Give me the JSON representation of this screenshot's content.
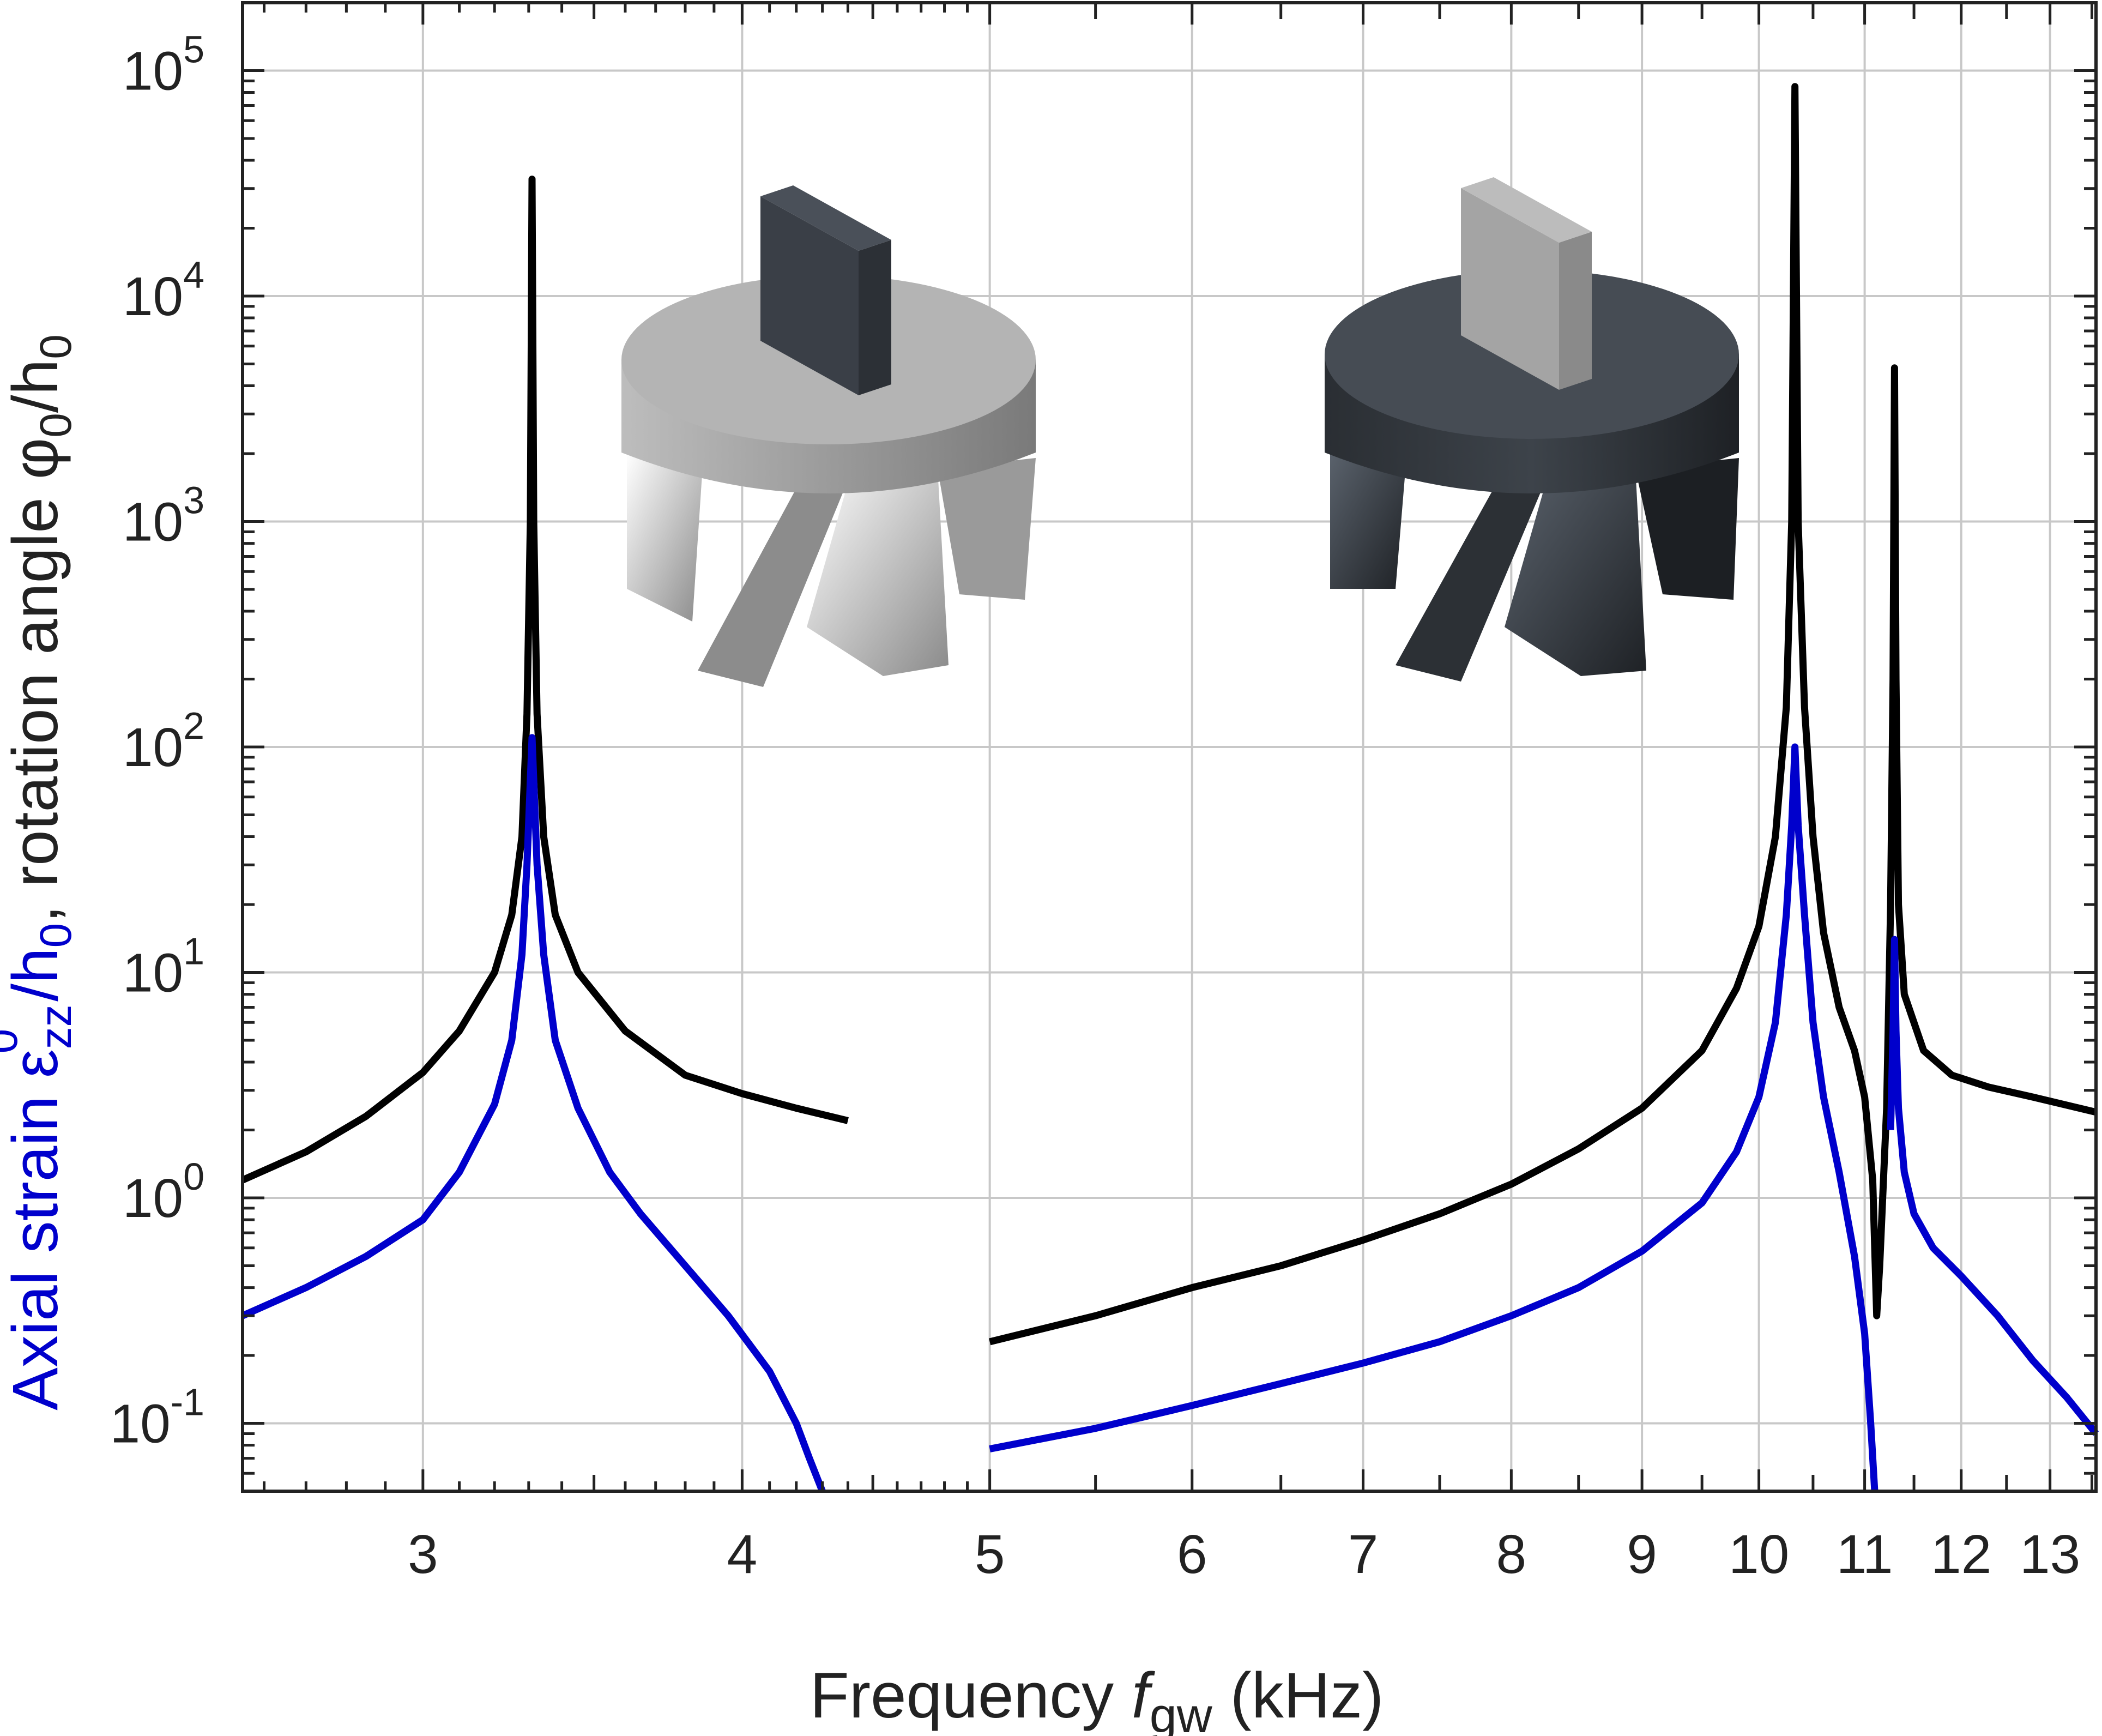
{
  "chart_data": {
    "type": "line",
    "xscale": "log",
    "yscale": "log",
    "xlim": [
      2.55,
      13.55
    ],
    "ylim": [
      0.05,
      200000
    ],
    "grid": true,
    "xlabel": {
      "main": "Frequency ",
      "symbol": "f",
      "subscript": "gw",
      "unit": " (kHz)"
    },
    "ylabel": {
      "strain_part": "Axial strain ε",
      "strain_sub": "zz",
      "strain_sup": "0",
      "strain_tail": "/h",
      "strain_tail_sub": "0",
      "separator": ",",
      "rotation_part": " rotation angle φ",
      "rotation_sub": "0",
      "rotation_tail": "/h",
      "rotation_tail_sub": "0"
    },
    "xticks": [
      {
        "value": 3,
        "label": "3"
      },
      {
        "value": 4,
        "label": "4"
      },
      {
        "value": 5,
        "label": "5"
      },
      {
        "value": 6,
        "label": "6"
      },
      {
        "value": 7,
        "label": "7"
      },
      {
        "value": 8,
        "label": "8"
      },
      {
        "value": 9,
        "label": "9"
      },
      {
        "value": 10,
        "label": "10"
      },
      {
        "value": 11,
        "label": "11"
      },
      {
        "value": 12,
        "label": "12"
      },
      {
        "value": 13,
        "label": "13"
      }
    ],
    "yticks": [
      {
        "value": 0.1,
        "base": "10",
        "exp": "-1"
      },
      {
        "value": 1,
        "base": "10",
        "exp": "0"
      },
      {
        "value": 10,
        "base": "10",
        "exp": "1"
      },
      {
        "value": 100,
        "base": "10",
        "exp": "2"
      },
      {
        "value": 1000,
        "base": "10",
        "exp": "3"
      },
      {
        "value": 10000,
        "base": "10",
        "exp": "4"
      },
      {
        "value": 100000,
        "base": "10",
        "exp": "5"
      }
    ],
    "series": [
      {
        "color": "#000000",
        "segments": [
          [
            [
              2.55,
              1.2
            ],
            [
              2.7,
              1.6
            ],
            [
              2.85,
              2.3
            ],
            [
              3.0,
              3.6
            ],
            [
              3.1,
              5.5
            ],
            [
              3.2,
              10
            ],
            [
              3.25,
              18
            ],
            [
              3.28,
              40
            ],
            [
              3.295,
              140
            ],
            [
              3.305,
              1000
            ],
            [
              3.31,
              33000
            ],
            [
              3.315,
              1000
            ],
            [
              3.325,
              140
            ],
            [
              3.345,
              40
            ],
            [
              3.38,
              18
            ],
            [
              3.45,
              10
            ],
            [
              3.6,
              5.5
            ],
            [
              3.8,
              3.5
            ],
            [
              4.0,
              2.9
            ],
            [
              4.2,
              2.5
            ],
            [
              4.4,
              2.2
            ]
          ],
          [
            [
              5.0,
              0.23
            ],
            [
              5.5,
              0.3
            ],
            [
              6.0,
              0.4
            ],
            [
              6.5,
              0.5
            ],
            [
              7.0,
              0.65
            ],
            [
              7.5,
              0.85
            ],
            [
              8.0,
              1.15
            ],
            [
              8.5,
              1.65
            ],
            [
              9.0,
              2.5
            ],
            [
              9.5,
              4.5
            ],
            [
              9.8,
              8.5
            ],
            [
              10.0,
              16
            ],
            [
              10.15,
              40
            ],
            [
              10.25,
              150
            ],
            [
              10.3,
              1000
            ],
            [
              10.33,
              85000
            ],
            [
              10.36,
              1000
            ],
            [
              10.42,
              150
            ],
            [
              10.5,
              40
            ],
            [
              10.6,
              15
            ],
            [
              10.75,
              7
            ],
            [
              10.9,
              4.5
            ],
            [
              11.0,
              2.8
            ],
            [
              11.08,
              1.2
            ],
            [
              11.12,
              0.3
            ],
            [
              11.15,
              0.5
            ],
            [
              11.22,
              2.5
            ],
            [
              11.26,
              20
            ],
            [
              11.285,
              200
            ],
            [
              11.3,
              4800
            ],
            [
              11.315,
              200
            ],
            [
              11.34,
              20
            ],
            [
              11.4,
              8
            ],
            [
              11.6,
              4.5
            ],
            [
              11.9,
              3.5
            ],
            [
              12.3,
              3.1
            ],
            [
              12.8,
              2.8
            ],
            [
              13.55,
              2.4
            ]
          ]
        ]
      },
      {
        "color": "#0000cc",
        "segments": [
          [
            [
              2.55,
              0.3
            ],
            [
              2.7,
              0.4
            ],
            [
              2.85,
              0.55
            ],
            [
              3.0,
              0.8
            ],
            [
              3.1,
              1.3
            ],
            [
              3.2,
              2.6
            ],
            [
              3.25,
              5
            ],
            [
              3.28,
              12
            ],
            [
              3.295,
              30
            ],
            [
              3.31,
              110
            ],
            [
              3.325,
              30
            ],
            [
              3.345,
              12
            ],
            [
              3.38,
              5
            ],
            [
              3.45,
              2.5
            ],
            [
              3.55,
              1.3
            ],
            [
              3.65,
              0.85
            ],
            [
              3.8,
              0.5
            ],
            [
              3.95,
              0.3
            ],
            [
              4.1,
              0.17
            ],
            [
              4.2,
              0.1
            ],
            [
              4.25,
              0.07
            ],
            [
              4.3,
              0.05
            ]
          ],
          [
            [
              5.0,
              0.077
            ],
            [
              5.5,
              0.095
            ],
            [
              6.0,
              0.12
            ],
            [
              6.5,
              0.15
            ],
            [
              7.0,
              0.185
            ],
            [
              7.5,
              0.23
            ],
            [
              8.0,
              0.3
            ],
            [
              8.5,
              0.4
            ],
            [
              9.0,
              0.58
            ],
            [
              9.5,
              0.95
            ],
            [
              9.8,
              1.6
            ],
            [
              10.0,
              2.8
            ],
            [
              10.15,
              6
            ],
            [
              10.25,
              18
            ],
            [
              10.3,
              45
            ],
            [
              10.33,
              100
            ],
            [
              10.36,
              45
            ],
            [
              10.42,
              18
            ],
            [
              10.5,
              6
            ],
            [
              10.6,
              2.8
            ],
            [
              10.75,
              1.3
            ],
            [
              10.9,
              0.55
            ],
            [
              11.0,
              0.25
            ],
            [
              11.06,
              0.1
            ],
            [
              11.1,
              0.05
            ]
          ],
          [
            [
              11.26,
              2
            ],
            [
              11.285,
              5.5
            ],
            [
              11.3,
              14
            ],
            [
              11.315,
              5.5
            ],
            [
              11.34,
              2.5
            ],
            [
              11.4,
              1.3
            ],
            [
              11.5,
              0.85
            ],
            [
              11.7,
              0.6
            ],
            [
              12.0,
              0.45
            ],
            [
              12.4,
              0.3
            ],
            [
              12.8,
              0.19
            ],
            [
              13.2,
              0.13
            ],
            [
              13.55,
              0.09
            ]
          ]
        ]
      }
    ]
  },
  "insets": [
    {
      "body_color": "#a9a9a9",
      "fin_color": "#8d8d8d",
      "top_color": "#b4b4b4",
      "key_color": "#3a3f47",
      "key_side_color": "#2c3036"
    },
    {
      "body_color": "#33383e",
      "fin_color": "#2a2e33",
      "top_color": "#464c54",
      "key_color": "#a4a4a4",
      "key_side_color": "#8a8a8a"
    }
  ],
  "colors": {
    "strain": "#0000cc",
    "rotation": "#1a1a1a",
    "axis": "#222222",
    "grid": "#c8c8c8"
  }
}
